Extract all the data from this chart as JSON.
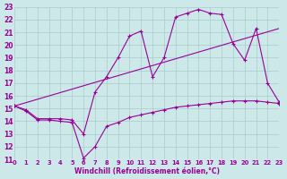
{
  "xlabel": "Windchill (Refroidissement éolien,°C)",
  "xlim": [
    0,
    23
  ],
  "ylim": [
    11,
    23
  ],
  "xticks": [
    0,
    1,
    2,
    3,
    4,
    5,
    6,
    7,
    8,
    9,
    10,
    11,
    12,
    13,
    14,
    15,
    16,
    17,
    18,
    19,
    20,
    21,
    22,
    23
  ],
  "yticks": [
    11,
    12,
    13,
    14,
    15,
    16,
    17,
    18,
    19,
    20,
    21,
    22,
    23
  ],
  "background_color": "#cce8e8",
  "grid_color": "#aacccc",
  "line_color": "#990099",
  "line1_x": [
    0,
    1,
    2,
    3,
    4,
    5,
    6,
    7,
    8,
    9,
    10,
    11,
    12,
    13,
    14,
    15,
    16,
    17,
    18,
    19,
    20,
    21,
    22,
    23
  ],
  "line1_y": [
    15.2,
    14.8,
    14.1,
    14.1,
    14.0,
    13.9,
    11.1,
    12.0,
    13.6,
    13.9,
    14.3,
    14.5,
    14.7,
    14.9,
    15.1,
    15.2,
    15.3,
    15.4,
    15.5,
    15.6,
    15.6,
    15.6,
    15.5,
    15.4
  ],
  "line2_x": [
    0,
    1,
    2,
    3,
    4,
    5,
    6,
    7,
    8,
    9,
    10,
    11,
    12,
    13,
    14,
    15,
    16,
    17,
    18,
    19,
    20,
    21,
    22,
    23
  ],
  "line2_y": [
    15.2,
    14.9,
    14.2,
    14.2,
    14.2,
    14.1,
    13.0,
    16.3,
    17.5,
    19.0,
    20.7,
    21.1,
    17.5,
    19.0,
    22.2,
    22.5,
    22.8,
    22.5,
    22.4,
    20.1,
    18.8,
    21.3,
    17.0,
    15.5
  ],
  "line3_x": [
    0,
    23
  ],
  "line3_y": [
    15.2,
    21.3
  ]
}
